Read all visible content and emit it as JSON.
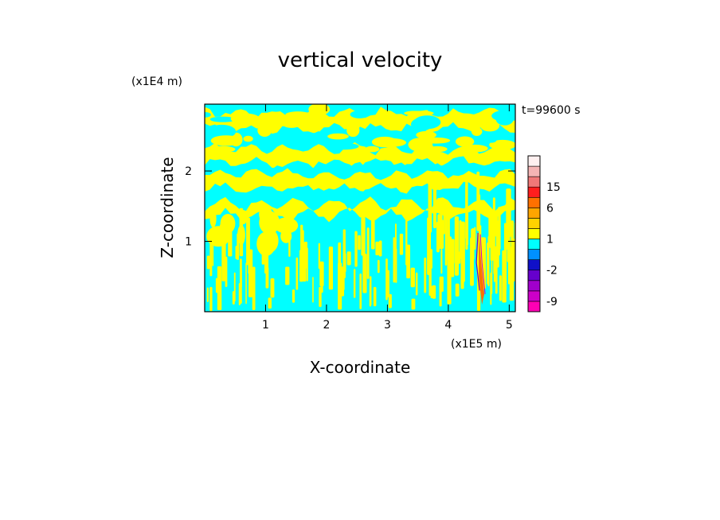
{
  "chart_data": {
    "type": "heatmap",
    "title": "vertical velocity",
    "xlabel": "X-coordinate",
    "ylabel": "Z-coordinate",
    "x_unit_label": "(x1E5 m)",
    "y_unit_label": "(x1E4 m)",
    "time_label": "t=99600 s",
    "xlim": [
      0,
      5.1
    ],
    "ylim": [
      0,
      2.95
    ],
    "x_ticks": [
      1,
      2,
      3,
      4,
      5
    ],
    "y_ticks": [
      1,
      2
    ],
    "x_tick_labels": [
      "1",
      "2",
      "3",
      "4",
      "5"
    ],
    "y_tick_labels": [
      "1",
      "2"
    ],
    "dominant_field": {
      "positive_color": "#ffff00",
      "negative_color": "#00ffff",
      "description_bands_km": [
        {
          "z_center": 2.6,
          "sign": "mixed"
        },
        {
          "z_center": 2.2,
          "sign": "positive"
        },
        {
          "z_center": 1.9,
          "sign": "positive"
        },
        {
          "z_center": 1.5,
          "sign": "positive"
        }
      ]
    },
    "updraft_column_x": 4.5,
    "colorbar": {
      "levels": [
        -12,
        -9,
        -6,
        -4,
        -2,
        -1,
        0,
        1,
        2,
        3,
        6,
        9,
        15,
        18,
        21
      ],
      "colors": [
        "#ff00b4",
        "#cc00c8",
        "#a000cc",
        "#6600cc",
        "#1010c8",
        "#0090ff",
        "#00ffff",
        "#ffff00",
        "#ffd200",
        "#ffa500",
        "#ff7000",
        "#ff1e1e",
        "#f07878",
        "#f5b4b4",
        "#fff0f0"
      ],
      "tick_labels": [
        "15",
        "6",
        "1",
        "-2",
        "-9"
      ],
      "tick_values": [
        15,
        6,
        1,
        -2,
        -9
      ]
    }
  }
}
